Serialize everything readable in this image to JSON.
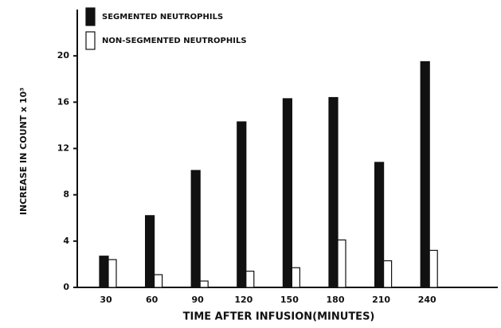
{
  "chart_data": {
    "type": "bar",
    "xlabel": "TIME AFTER INFUSION(MINUTES)",
    "ylabel": "INCREASE IN COUNT x 10³",
    "categories": [
      "30",
      "60",
      "90",
      "120",
      "150",
      "180",
      "210",
      "240"
    ],
    "series": [
      {
        "name": "SEGMENTED NEUTROPHILS",
        "color": "#111111",
        "values": [
          2.7,
          6.2,
          10.1,
          14.3,
          16.3,
          16.4,
          10.8,
          19.5
        ]
      },
      {
        "name": "NON-SEGMENTED NEUTROPHILS",
        "color": "#ffffff",
        "values": [
          2.4,
          1.1,
          0.55,
          1.4,
          1.7,
          4.1,
          2.3,
          3.2
        ]
      }
    ],
    "ylim": [
      0,
      24
    ],
    "yticks": [
      0,
      4,
      8,
      12,
      16,
      20
    ],
    "grid": false,
    "legend": "top-left"
  }
}
